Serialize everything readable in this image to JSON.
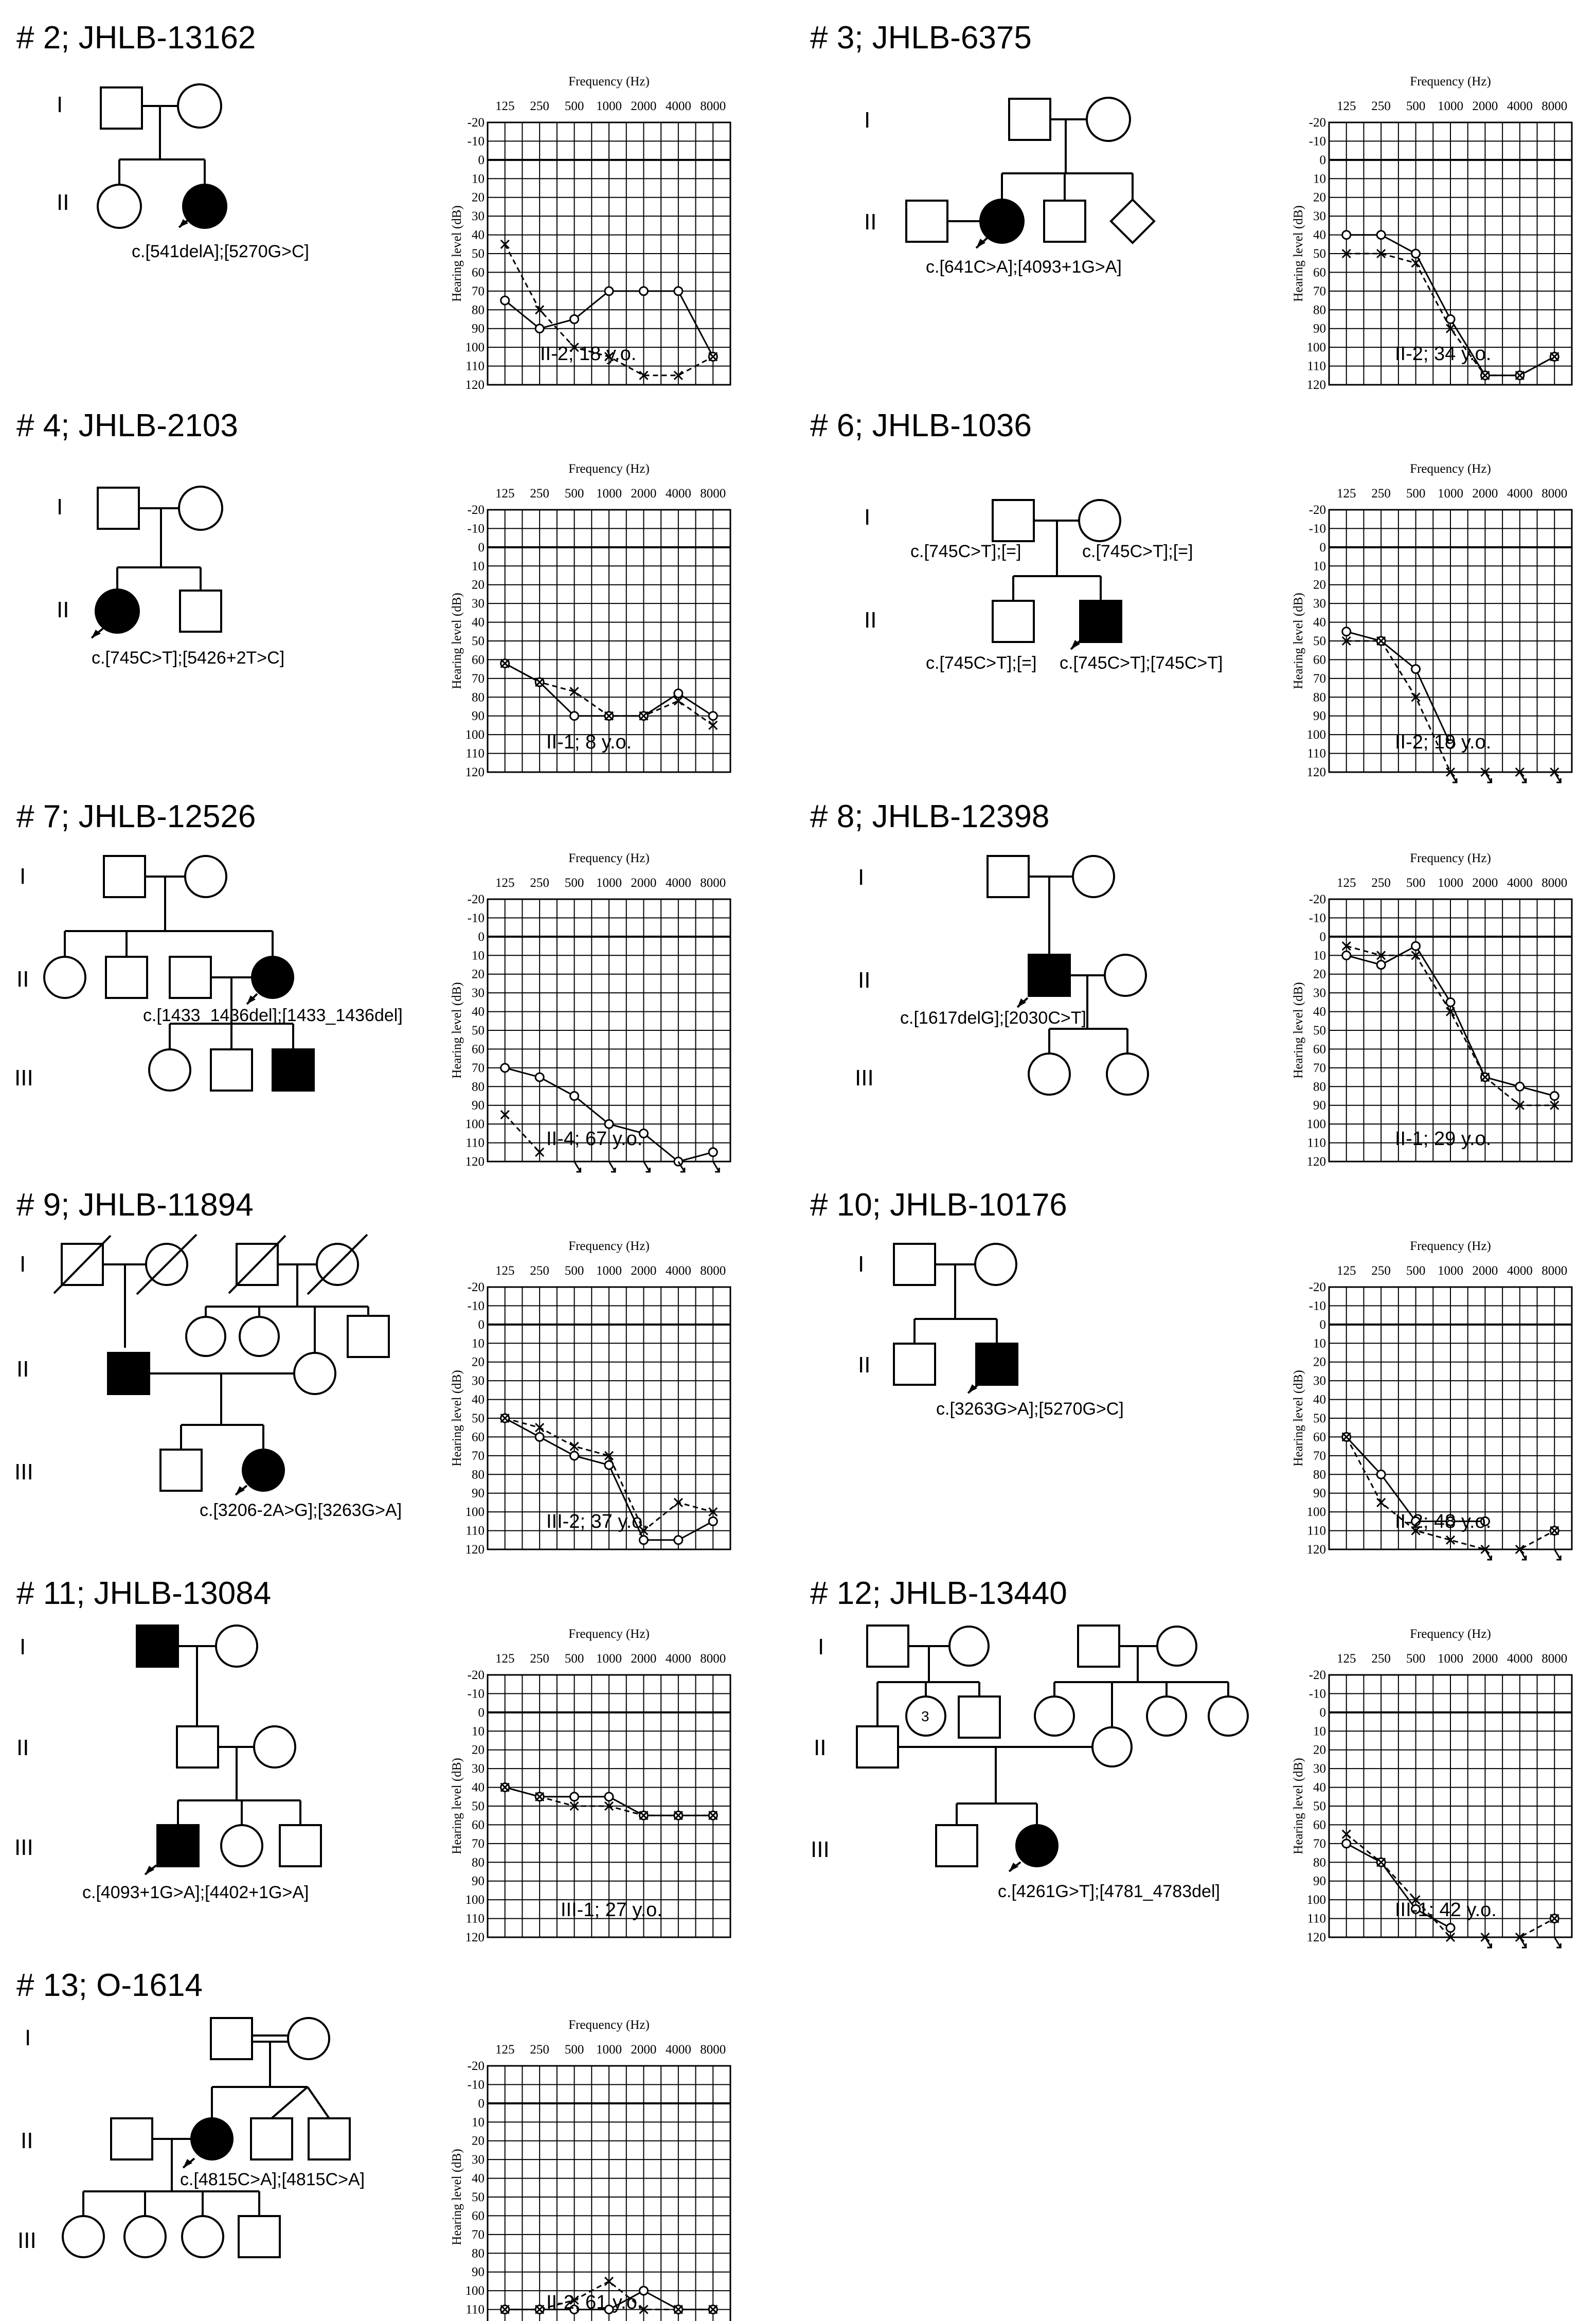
{
  "axis": {
    "frequency_title": "Frequency (Hz)",
    "level_title": "Hearing level (dB)",
    "frequencies": [
      "125",
      "250",
      "500",
      "1000",
      "2000",
      "4000",
      "8000"
    ],
    "levels": [
      "-20",
      "-10",
      "0",
      "10",
      "20",
      "30",
      "40",
      "50",
      "60",
      "70",
      "80",
      "90",
      "100",
      "110",
      "120"
    ]
  },
  "panels": [
    {
      "title": "# 2; JHLB-13162",
      "generations": [
        "I",
        "II"
      ],
      "genotypes": [
        "c.[541delA];[5270G>C]"
      ],
      "caption": "II-2; 18 y.o.",
      "audiogram": {
        "solid": [
          75,
          90,
          85,
          70,
          70,
          70,
          105
        ],
        "dashed": [
          45,
          80,
          100,
          105,
          115,
          115,
          105
        ],
        "dashed_no_response": []
      }
    },
    {
      "title": "# 3; JHLB-6375",
      "generations": [
        "I",
        "II"
      ],
      "genotypes": [
        "c.[641C>A];[4093+1G>A]"
      ],
      "caption": "II-2; 34 y.o.",
      "audiogram": {
        "solid": [
          40,
          40,
          50,
          85,
          115,
          115,
          105
        ],
        "dashed": [
          50,
          50,
          55,
          90,
          115,
          115,
          105
        ],
        "dashed_no_response": []
      }
    },
    {
      "title": "# 4; JHLB-2103",
      "generations": [
        "I",
        "II"
      ],
      "genotypes": [
        "c.[745C>T];[5426+2T>C]"
      ],
      "caption": "II-1; 8 y.o.",
      "audiogram": {
        "solid": [
          62,
          72,
          90,
          90,
          90,
          78,
          90
        ],
        "dashed": [
          62,
          72,
          77,
          90,
          90,
          82,
          95
        ],
        "dashed_no_response": []
      }
    },
    {
      "title": "# 6; JHLB-1036",
      "generations": [
        "I",
        "II"
      ],
      "genotypes": [
        "c.[745C>T];[=]",
        "c.[745C>T];[=]",
        "c.[745C>T];[=]",
        "c.[745C>T];[745C>T]"
      ],
      "caption": "II-2; 19 y.o.",
      "audiogram": {
        "solid": [
          45,
          50,
          65,
          105,
          null,
          null,
          null
        ],
        "dashed": [
          50,
          50,
          80,
          120,
          120,
          120,
          120
        ],
        "dashed_no_response": [
          3,
          4,
          5,
          6
        ]
      }
    },
    {
      "title": "# 7; JHLB-12526",
      "generations": [
        "I",
        "II",
        "III"
      ],
      "genotypes": [
        "c.[1433_1436del];[1433_1436del]"
      ],
      "caption": "II-4; 67 y.o.",
      "audiogram": {
        "solid": [
          70,
          75,
          85,
          100,
          105,
          120,
          115
        ],
        "dashed": [
          95,
          115,
          null,
          null,
          null,
          null,
          null
        ],
        "dashed_no_response": [
          2,
          3,
          4,
          5,
          6
        ]
      }
    },
    {
      "title": "# 8; JHLB-12398",
      "generations": [
        "I",
        "II",
        "III"
      ],
      "genotypes": [
        "c.[1617delG];[2030C>T]"
      ],
      "caption": "II-1; 29 y.o.",
      "audiogram": {
        "solid": [
          10,
          15,
          5,
          35,
          75,
          80,
          85
        ],
        "dashed": [
          5,
          10,
          10,
          40,
          75,
          90,
          90
        ],
        "dashed_no_response": []
      }
    },
    {
      "title": "# 9; JHLB-11894",
      "generations": [
        "I",
        "II",
        "III"
      ],
      "genotypes": [
        "c.[3206-2A>G];[3263G>A]"
      ],
      "caption": "III-2; 37 y.o.",
      "audiogram": {
        "solid": [
          50,
          60,
          70,
          75,
          115,
          115,
          105
        ],
        "dashed": [
          50,
          55,
          65,
          70,
          110,
          95,
          100
        ],
        "dashed_no_response": []
      }
    },
    {
      "title": "# 10; JHLB-10176",
      "generations": [
        "I",
        "II"
      ],
      "genotypes": [
        "c.[3263G>A];[5270G>C]"
      ],
      "caption": "II-2; 48 y.o.",
      "audiogram": {
        "solid": [
          60,
          80,
          105,
          105,
          105,
          null,
          110
        ],
        "dashed": [
          60,
          95,
          110,
          115,
          120,
          120,
          110
        ],
        "dashed_no_response": [
          4,
          5,
          6
        ]
      }
    },
    {
      "title": "# 11; JHLB-13084",
      "generations": [
        "I",
        "II",
        "III"
      ],
      "genotypes": [
        "c.[4093+1G>A];[4402+1G>A]"
      ],
      "caption": "III-1; 27 y.o.",
      "audiogram": {
        "solid": [
          40,
          45,
          45,
          45,
          55,
          55,
          55
        ],
        "dashed": [
          40,
          45,
          50,
          50,
          55,
          55,
          55
        ],
        "dashed_no_response": []
      }
    },
    {
      "title": "# 12; JHLB-13440",
      "generations": [
        "I",
        "II",
        "III"
      ],
      "genotypes": [
        "c.[4261G>T];[4781_4783del]"
      ],
      "caption": "III-1; 42 y.o.",
      "sibship_count": "3",
      "audiogram": {
        "solid": [
          70,
          80,
          105,
          115,
          null,
          null,
          110
        ],
        "dashed": [
          65,
          80,
          100,
          120,
          120,
          120,
          110
        ],
        "dashed_no_response": [
          4,
          5,
          6
        ]
      }
    },
    {
      "title": "# 13; O-1614",
      "generations": [
        "I",
        "II",
        "III"
      ],
      "genotypes": [
        "c.[4815C>A];[4815C>A]"
      ],
      "caption": "II-2; 61 y.o.",
      "audiogram": {
        "solid": [
          110,
          110,
          110,
          110,
          100,
          110,
          110
        ],
        "dashed": [
          110,
          110,
          105,
          95,
          110,
          110,
          110
        ],
        "dashed_no_response": []
      }
    }
  ]
}
